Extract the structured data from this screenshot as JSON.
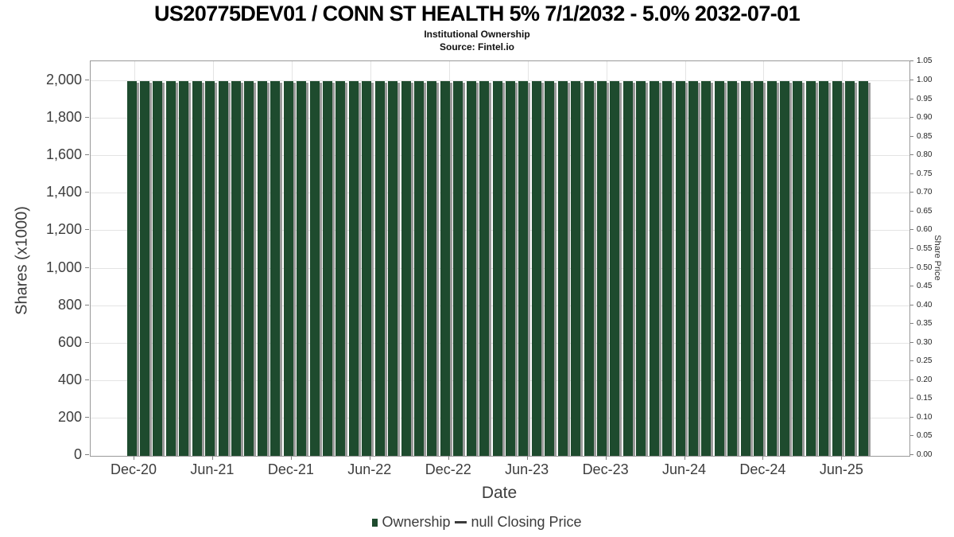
{
  "header": {
    "title": "US20775DEV01 / CONN ST HEALTH 5% 7/1/2032 - 5.0% 2032-07-01",
    "subtitle": "Institutional Ownership",
    "source": "Source: Fintel.io"
  },
  "colors": {
    "bar": "#1e4b2e",
    "bar_shadow": "#9a9a9a",
    "grid": "#e4e4e4",
    "frame": "#999999",
    "axis_text": "#3d3d3d",
    "background": "#ffffff"
  },
  "chart_data": {
    "type": "bar",
    "title": "US20775DEV01 / CONN ST HEALTH 5% 7/1/2032 - 5.0% 2032-07-01",
    "subtitle": "Institutional Ownership",
    "source": "Source: Fintel.io",
    "xlabel": "Date",
    "ylabel": "Shares (x1000)",
    "y2label": "Share Price",
    "ylim": [
      0,
      2000
    ],
    "y2lim": [
      0.0,
      1.05
    ],
    "grid": true,
    "legend_position": "bottom",
    "x_tick_labels": [
      "Dec-20",
      "Jun-21",
      "Dec-21",
      "Jun-22",
      "Dec-22",
      "Jun-23",
      "Dec-23",
      "Jun-24",
      "Dec-24",
      "Jun-25"
    ],
    "y_tick_labels_left": [
      "0",
      "200",
      "400",
      "600",
      "800",
      "1,000",
      "1,200",
      "1,400",
      "1,600",
      "1,800",
      "2,000"
    ],
    "y_tick_labels_right": [
      "0.00",
      "0.05",
      "0.10",
      "0.15",
      "0.20",
      "0.25",
      "0.30",
      "0.35",
      "0.40",
      "0.45",
      "0.50",
      "0.55",
      "0.60",
      "0.65",
      "0.70",
      "0.75",
      "0.80",
      "0.85",
      "0.90",
      "0.95",
      "1.00",
      "1.05"
    ],
    "categories": [
      "Dec-20",
      "Jan-21",
      "Feb-21",
      "Mar-21",
      "Apr-21",
      "May-21",
      "Jun-21",
      "Jul-21",
      "Aug-21",
      "Sep-21",
      "Oct-21",
      "Nov-21",
      "Dec-21",
      "Jan-22",
      "Feb-22",
      "Mar-22",
      "Apr-22",
      "May-22",
      "Jun-22",
      "Jul-22",
      "Aug-22",
      "Sep-22",
      "Oct-22",
      "Nov-22",
      "Dec-22",
      "Jan-23",
      "Feb-23",
      "Mar-23",
      "Apr-23",
      "May-23",
      "Jun-23",
      "Jul-23",
      "Aug-23",
      "Sep-23",
      "Oct-23",
      "Nov-23",
      "Dec-23",
      "Jan-24",
      "Feb-24",
      "Mar-24",
      "Apr-24",
      "May-24",
      "Jun-24",
      "Jul-24",
      "Aug-24",
      "Sep-24",
      "Oct-24",
      "Nov-24",
      "Dec-24",
      "Jan-25",
      "Feb-25",
      "Mar-25",
      "Apr-25",
      "May-25",
      "Jun-25",
      "Jul-25",
      "Aug-25"
    ],
    "series": [
      {
        "name": "Ownership",
        "type": "bar",
        "color": "#1e4b2e",
        "axis": "left",
        "values": [
          2000,
          2000,
          2000,
          2000,
          2000,
          2000,
          2000,
          2000,
          2000,
          2000,
          2000,
          2000,
          2000,
          2000,
          2000,
          2000,
          2000,
          2000,
          2000,
          2000,
          2000,
          2000,
          2000,
          2000,
          2000,
          2000,
          2000,
          2000,
          2000,
          2000,
          2000,
          2000,
          2000,
          2000,
          2000,
          2000,
          2000,
          2000,
          2000,
          2000,
          2000,
          2000,
          2000,
          2000,
          2000,
          2000,
          2000,
          2000,
          2000,
          2000,
          2000,
          2000,
          2000,
          2000,
          2000,
          2000,
          2000
        ]
      },
      {
        "name": "null Closing Price",
        "type": "line",
        "color": "#3c3c3c",
        "axis": "right",
        "values": []
      }
    ]
  }
}
